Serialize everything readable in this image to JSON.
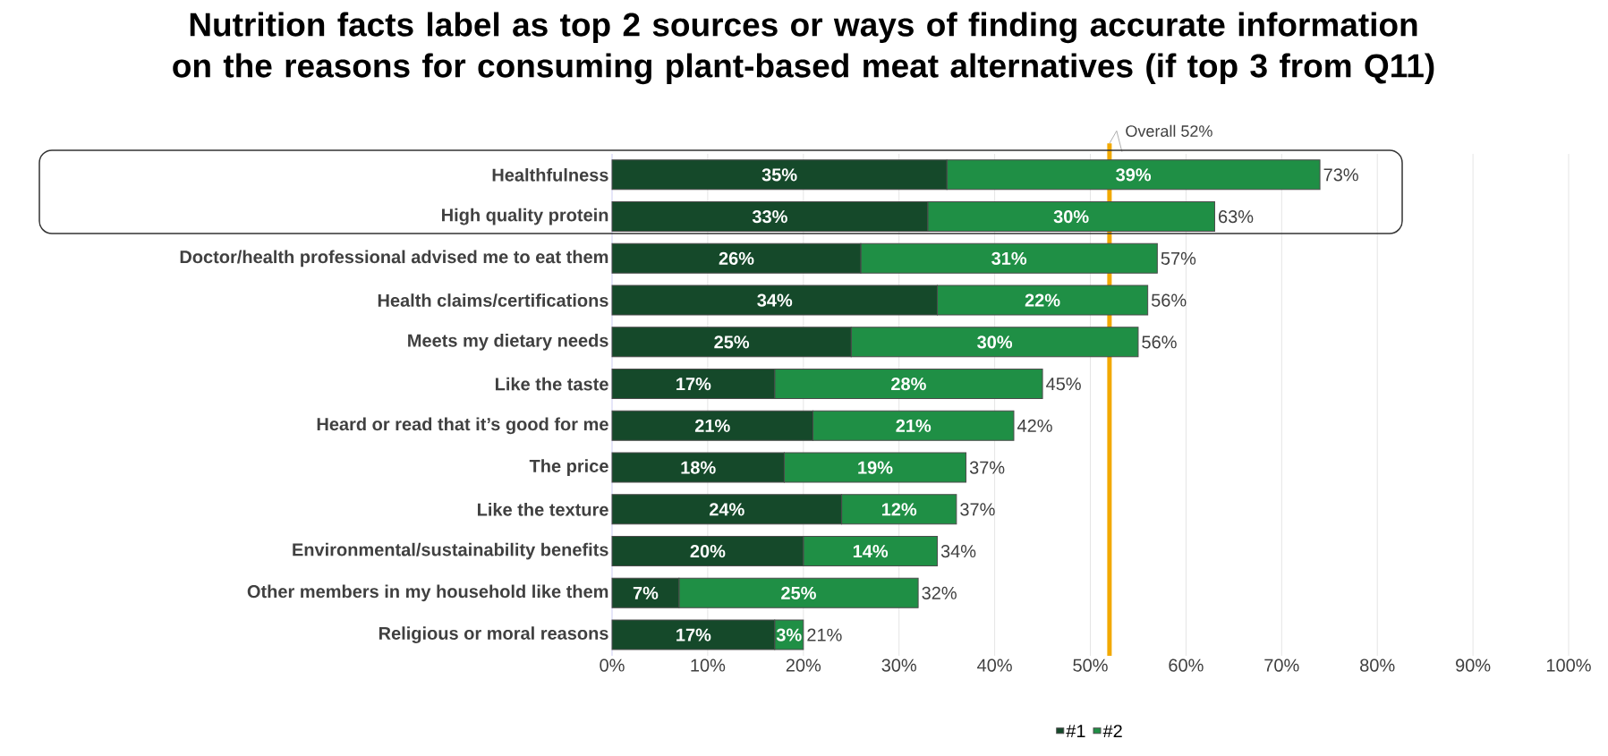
{
  "chart_data": {
    "type": "bar",
    "orientation": "horizontal",
    "stacked": true,
    "title": "Nutrition facts label as top 2 sources or ways of finding accurate information on the reasons for consuming plant-based meat alternatives (if top 3 from Q11)",
    "categories": [
      "Healthfulness",
      "High quality protein",
      "Doctor/health professional advised me to eat them",
      "Health claims/certifications",
      "Meets my dietary needs",
      "Like the taste",
      "Heard or read that it’s good for me",
      "The price",
      "Like the texture",
      "Environmental/sustainability benefits",
      "Other members in my household like them",
      "Religious or moral reasons"
    ],
    "series": [
      {
        "name": "#1",
        "color": "#15492a",
        "values": [
          35,
          33,
          26,
          34,
          25,
          17,
          21,
          18,
          24,
          20,
          7,
          17
        ],
        "value_labels": [
          "35%",
          "33%",
          "26%",
          "34%",
          "25%",
          "17%",
          "21%",
          "18%",
          "24%",
          "20%",
          "7%",
          "17%"
        ]
      },
      {
        "name": "#2",
        "color": "#1f8f45",
        "values": [
          39,
          30,
          31,
          22,
          30,
          28,
          21,
          19,
          12,
          14,
          25,
          3
        ],
        "value_labels": [
          "39%",
          "30%",
          "31%",
          "22%",
          "30%",
          "28%",
          "21%",
          "19%",
          "12%",
          "14%",
          "25%",
          "3%"
        ]
      }
    ],
    "totals": [
      "73%",
      "63%",
      "57%",
      "56%",
      "56%",
      "45%",
      "42%",
      "37%",
      "37%",
      "34%",
      "32%",
      "21%"
    ],
    "xlim": [
      0,
      100
    ],
    "xticks": [
      {
        "value": 0,
        "label": "0%"
      },
      {
        "value": 10,
        "label": "10%"
      },
      {
        "value": 20,
        "label": "20%"
      },
      {
        "value": 30,
        "label": "30%"
      },
      {
        "value": 40,
        "label": "40%"
      },
      {
        "value": 50,
        "label": "50%"
      },
      {
        "value": 60,
        "label": "60%"
      },
      {
        "value": 70,
        "label": "70%"
      },
      {
        "value": 80,
        "label": "80%"
      },
      {
        "value": 90,
        "label": "90%"
      },
      {
        "value": 100,
        "label": "100%"
      }
    ],
    "ref_lines": [
      {
        "axis": "x",
        "value": 52,
        "label": "Overall 52%",
        "color": "#f2a900"
      }
    ],
    "grid": "x",
    "legend": "bottom"
  }
}
